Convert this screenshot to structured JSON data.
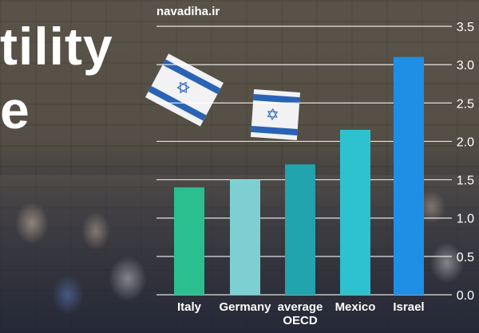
{
  "headline": {
    "line1": "tility",
    "line2": "e"
  },
  "watermark": "navadiha.ir",
  "chart_data": {
    "type": "bar",
    "categories": [
      "Italy",
      "Germany",
      "average OECD",
      "Mexico",
      "Israel"
    ],
    "category_lines": [
      [
        "Italy"
      ],
      [
        "Germany"
      ],
      [
        "average",
        "OECD"
      ],
      [
        "Mexico"
      ],
      [
        "Israel"
      ]
    ],
    "values": [
      1.4,
      1.5,
      1.7,
      2.15,
      3.1
    ],
    "colors": [
      "#2bbf8f",
      "#7ecfd2",
      "#21a4ad",
      "#2ec1d0",
      "#1f8fe6"
    ],
    "yticks": [
      "0.0",
      "0.5",
      "1.0",
      "1.5",
      "2.0",
      "2.5",
      "3.0",
      "3.5"
    ],
    "ylim": [
      0,
      3.5
    ],
    "grid": true
  }
}
